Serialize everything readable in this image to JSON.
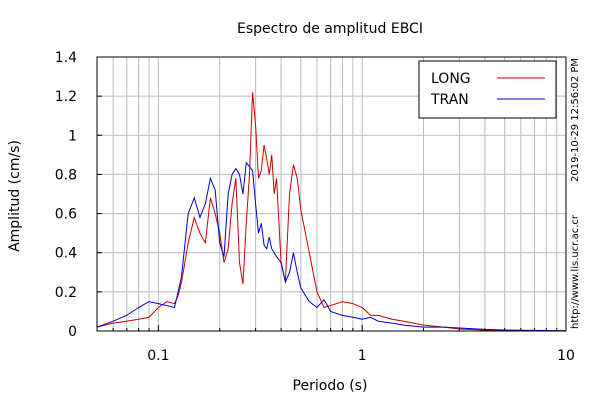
{
  "chart_data": {
    "type": "line",
    "title": "Espectro de amplitud EBCI",
    "xlabel": "Periodo (s)",
    "ylabel": "Amplitud (cm/s)",
    "x_scale": "log",
    "xlim": [
      0.05,
      10
    ],
    "ylim": [
      0,
      1.4
    ],
    "x_tick_labels": [
      "0.1",
      "1",
      "10"
    ],
    "x_tick_values": [
      0.1,
      1,
      10
    ],
    "y_tick_labels": [
      "0",
      "0.2",
      "0.4",
      "0.6",
      "0.8",
      "1",
      "1.2",
      "1.4"
    ],
    "y_tick_values": [
      0,
      0.2,
      0.4,
      0.6,
      0.8,
      1.0,
      1.2,
      1.4
    ],
    "grid": true,
    "legend_position": "top-right",
    "timestamp": "2019-10-29 12:56:02 PM",
    "source_url": "http://www.lis.ucr.ac.cr",
    "series": [
      {
        "name": "LONG",
        "color": "#cc0000",
        "x": [
          0.05,
          0.06,
          0.07,
          0.08,
          0.09,
          0.1,
          0.11,
          0.12,
          0.125,
          0.13,
          0.14,
          0.15,
          0.16,
          0.17,
          0.18,
          0.19,
          0.2,
          0.21,
          0.22,
          0.23,
          0.24,
          0.25,
          0.26,
          0.27,
          0.28,
          0.29,
          0.3,
          0.31,
          0.32,
          0.33,
          0.34,
          0.35,
          0.36,
          0.37,
          0.38,
          0.4,
          0.42,
          0.44,
          0.46,
          0.48,
          0.5,
          0.55,
          0.6,
          0.65,
          0.7,
          0.8,
          0.9,
          1.0,
          1.1,
          1.2,
          1.4,
          1.6,
          2.0,
          2.5,
          3.0,
          4.0,
          5.0,
          7.0,
          10.0
        ],
        "y": [
          0.02,
          0.04,
          0.05,
          0.06,
          0.07,
          0.12,
          0.15,
          0.14,
          0.18,
          0.25,
          0.45,
          0.58,
          0.5,
          0.45,
          0.68,
          0.6,
          0.5,
          0.35,
          0.42,
          0.65,
          0.78,
          0.35,
          0.24,
          0.55,
          0.8,
          1.22,
          1.05,
          0.78,
          0.82,
          0.95,
          0.88,
          0.8,
          0.9,
          0.7,
          0.78,
          0.35,
          0.25,
          0.7,
          0.85,
          0.78,
          0.62,
          0.4,
          0.2,
          0.12,
          0.13,
          0.15,
          0.14,
          0.12,
          0.08,
          0.08,
          0.06,
          0.05,
          0.03,
          0.02,
          0.01,
          0.005,
          0.003,
          0.002,
          0.001
        ]
      },
      {
        "name": "TRAN",
        "color": "#0000cc",
        "x": [
          0.05,
          0.06,
          0.07,
          0.08,
          0.09,
          0.1,
          0.11,
          0.12,
          0.125,
          0.13,
          0.14,
          0.15,
          0.16,
          0.17,
          0.18,
          0.19,
          0.2,
          0.21,
          0.22,
          0.23,
          0.24,
          0.25,
          0.26,
          0.27,
          0.28,
          0.29,
          0.3,
          0.31,
          0.32,
          0.33,
          0.34,
          0.35,
          0.36,
          0.37,
          0.38,
          0.4,
          0.42,
          0.44,
          0.46,
          0.48,
          0.5,
          0.55,
          0.6,
          0.65,
          0.7,
          0.8,
          0.9,
          1.0,
          1.1,
          1.2,
          1.4,
          1.6,
          2.0,
          2.5,
          3.0,
          4.0,
          5.0,
          7.0,
          10.0
        ],
        "y": [
          0.02,
          0.05,
          0.08,
          0.12,
          0.15,
          0.14,
          0.13,
          0.12,
          0.2,
          0.28,
          0.6,
          0.68,
          0.58,
          0.65,
          0.78,
          0.72,
          0.45,
          0.38,
          0.7,
          0.8,
          0.83,
          0.8,
          0.7,
          0.86,
          0.84,
          0.82,
          0.65,
          0.5,
          0.55,
          0.44,
          0.42,
          0.48,
          0.42,
          0.4,
          0.38,
          0.35,
          0.25,
          0.3,
          0.4,
          0.3,
          0.22,
          0.15,
          0.12,
          0.16,
          0.1,
          0.08,
          0.07,
          0.06,
          0.07,
          0.05,
          0.04,
          0.03,
          0.02,
          0.02,
          0.015,
          0.008,
          0.005,
          0.003,
          0.001
        ]
      }
    ]
  }
}
